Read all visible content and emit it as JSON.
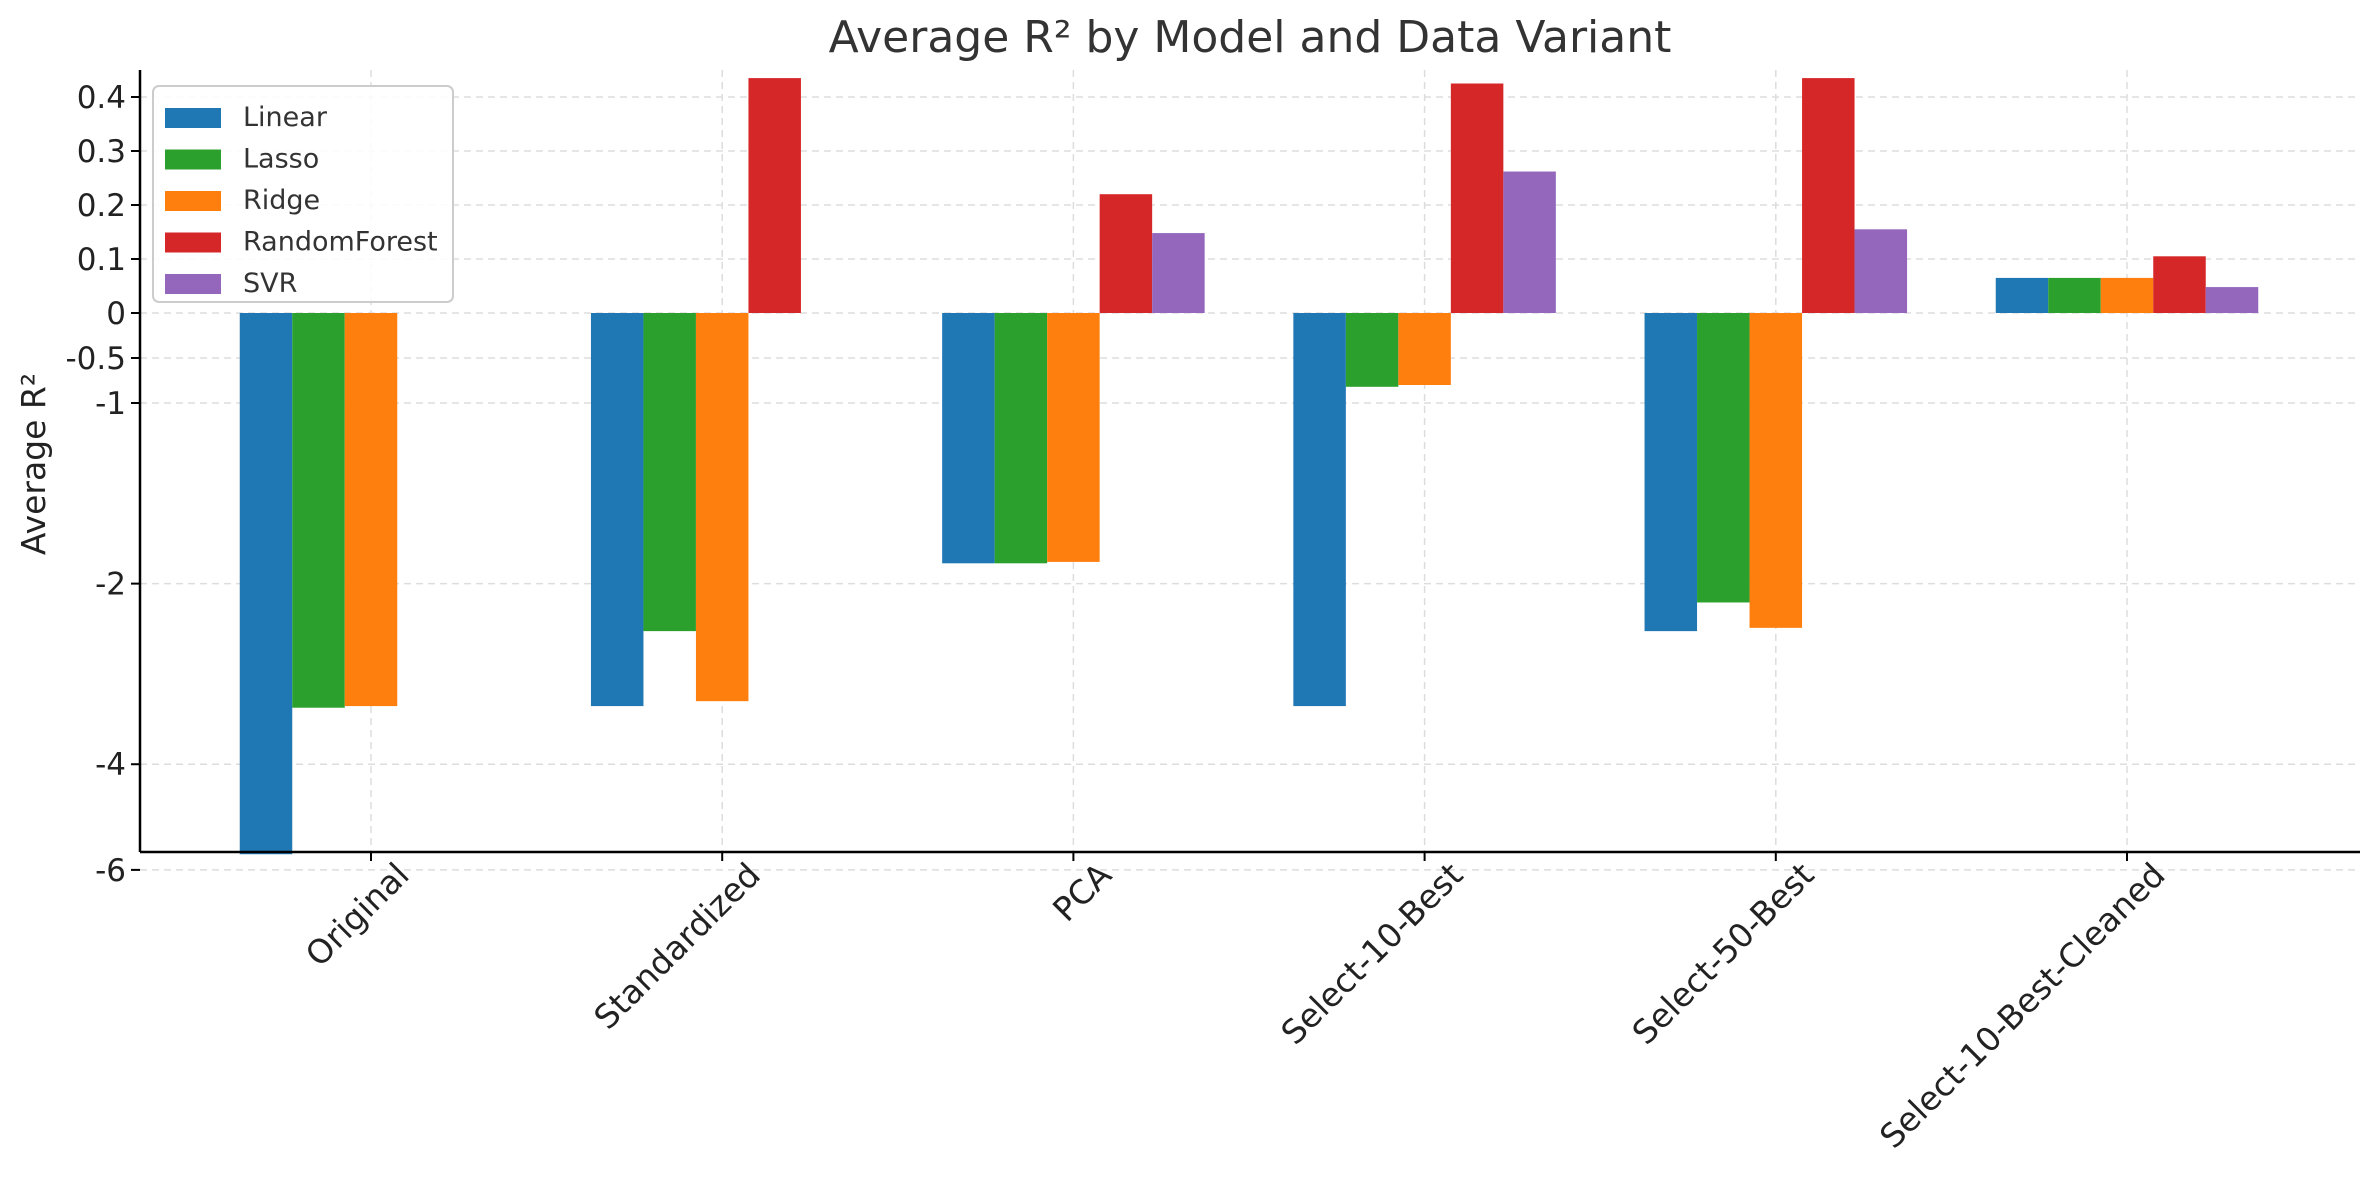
{
  "chart_data": {
    "type": "bar",
    "title": "Average R² by Model and Data Variant",
    "xlabel": "",
    "ylabel": "Average R²",
    "categories": [
      "Original",
      "Standardized",
      "PCA",
      "Select-10-Best",
      "Select-50-Best",
      "Select-10-Best-Cleaned"
    ],
    "series": [
      {
        "name": "Linear",
        "color": "#1f77b4",
        "values": [
          -5.65,
          -3.2,
          -1.85,
          -3.2,
          -2.4,
          0.065
        ]
      },
      {
        "name": "Lasso",
        "color": "#2ca02c",
        "values": [
          -3.22,
          -2.4,
          -1.85,
          -0.82,
          -2.15,
          0.065
        ]
      },
      {
        "name": "Ridge",
        "color": "#ff7f0e",
        "values": [
          -3.2,
          -3.14,
          -1.84,
          -0.8,
          -2.37,
          0.065
        ]
      },
      {
        "name": "RandomForest",
        "color": "#d62728",
        "values": [
          0,
          0.435,
          0.22,
          0.425,
          0.435,
          0.105
        ]
      },
      {
        "name": "SVR",
        "color": "#9467bd",
        "values": [
          0,
          0,
          0.148,
          0.262,
          0.155,
          0.048
        ]
      }
    ],
    "yscale": "symlog",
    "yticks": [
      -6,
      -4,
      -2,
      -1,
      -0.5,
      0,
      0.1,
      0.2,
      0.3,
      0.4
    ],
    "ytick_labels": [
      "-6",
      "-4",
      "-2",
      "-1",
      "-0.5",
      "0",
      "0.1",
      "0.2",
      "0.3",
      "0.4"
    ],
    "ylim": [
      -6,
      0.45
    ],
    "grid": true,
    "legend_position": "top-left"
  }
}
